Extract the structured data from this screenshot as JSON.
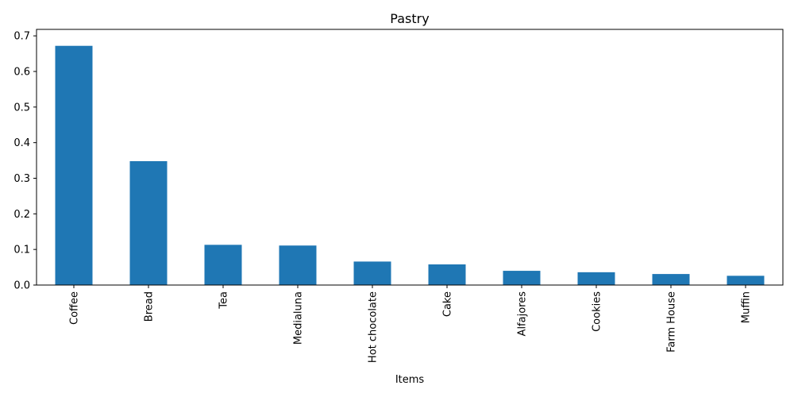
{
  "chart_data": {
    "type": "bar",
    "title": "Pastry",
    "xlabel": "Items",
    "ylabel": "",
    "categories": [
      "Coffee",
      "Bread",
      "Tea",
      "Medialuna",
      "Hot chocolate",
      "Cake",
      "Alfajores",
      "Cookies",
      "Farm House",
      "Muffin"
    ],
    "values": [
      0.672,
      0.348,
      0.113,
      0.111,
      0.066,
      0.058,
      0.04,
      0.036,
      0.031,
      0.026
    ],
    "ylim": [
      0,
      0.7182
    ],
    "yticks": [
      "0.0",
      "0.1",
      "0.2",
      "0.3",
      "0.4",
      "0.5",
      "0.6",
      "0.7"
    ],
    "bar_color": "#1f77b4",
    "grid": false,
    "legend": "none"
  }
}
